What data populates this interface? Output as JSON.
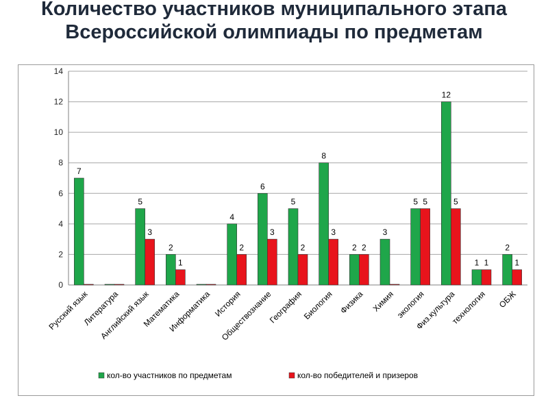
{
  "title": "Количество участников муниципального этапа Всероссийской олимпиады по предметам",
  "chart_data": {
    "type": "bar",
    "categories": [
      "Русский язык",
      "Литература",
      "Английский язык",
      "Математика",
      "Информатика",
      "История",
      "Обществознание",
      "География",
      "Биология",
      "Физика",
      "Химия",
      "экология",
      "Физ.культура",
      "технология",
      "ОБЖ"
    ],
    "series": [
      {
        "name": "кол-во участников по предметам",
        "color": "#1fa64a",
        "values": [
          7,
          0,
          5,
          2,
          0,
          4,
          6,
          5,
          8,
          2,
          3,
          5,
          12,
          1,
          2
        ],
        "labels": [
          "7",
          "",
          "5",
          "2",
          "",
          "4",
          "6",
          "5",
          "8",
          "2",
          "3",
          "5",
          "12",
          "1",
          "2"
        ]
      },
      {
        "name": "кол-во победителей и призеров",
        "color": "#e8141c",
        "values": [
          0,
          0,
          3,
          1,
          0,
          2,
          3,
          2,
          3,
          2,
          0,
          5,
          5,
          1,
          1
        ],
        "labels": [
          "",
          "",
          "3",
          "1",
          "",
          "2",
          "3",
          "2",
          "3",
          "2",
          "",
          "5",
          "5",
          "1",
          "1"
        ]
      }
    ],
    "ylim": [
      0,
      14
    ],
    "yticks": [
      0,
      2,
      4,
      6,
      8,
      10,
      12,
      14
    ],
    "grid": true,
    "legend": "bottom"
  }
}
